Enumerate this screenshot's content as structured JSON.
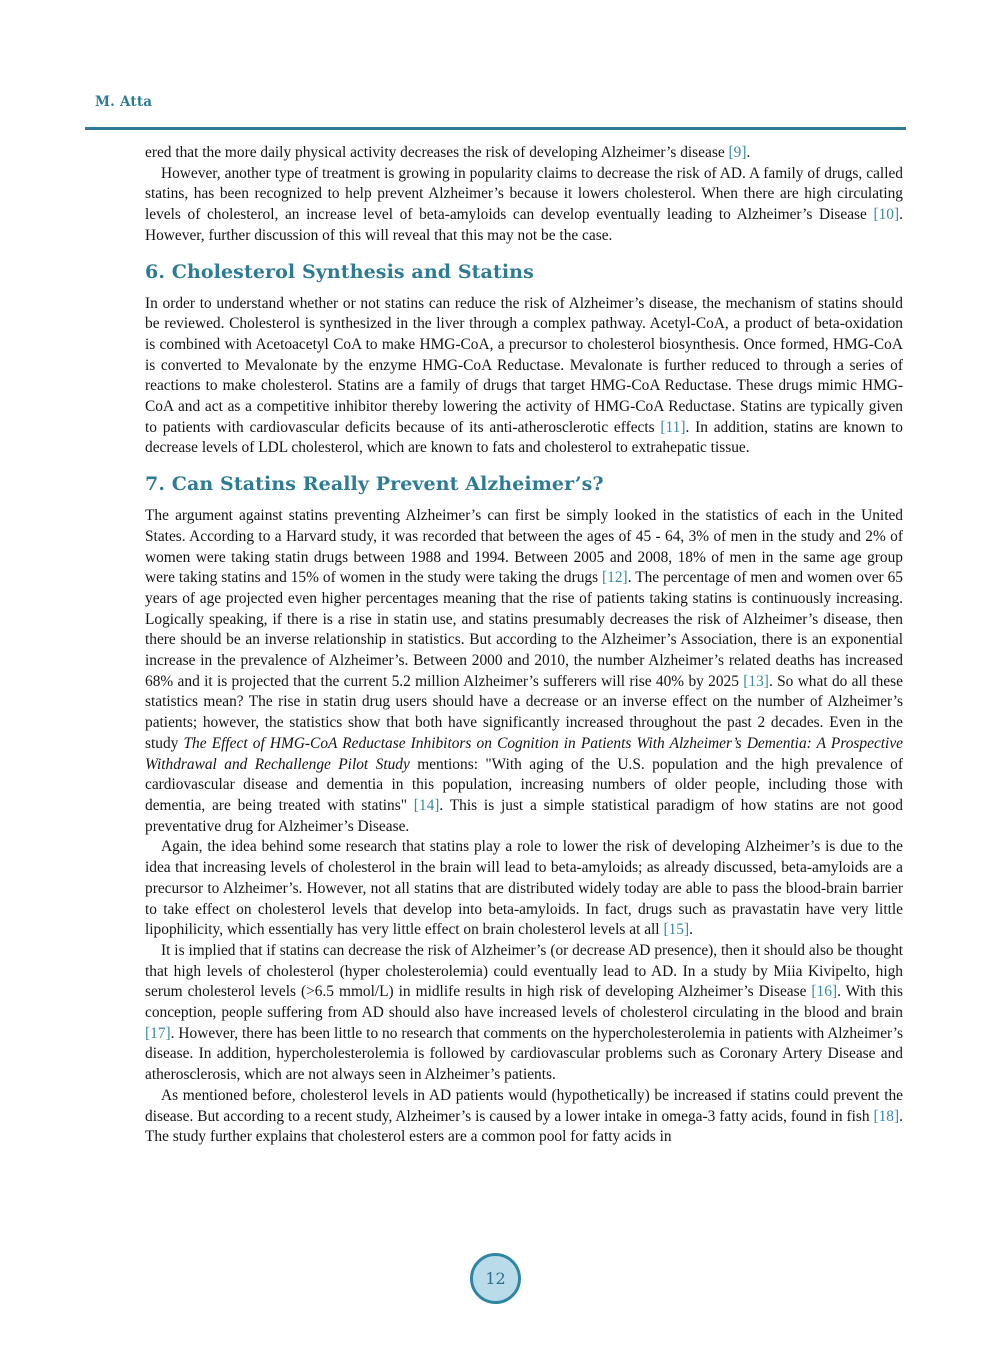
{
  "header": {
    "author": "M. Atta"
  },
  "footer": {
    "page_number": "12"
  },
  "colors": {
    "accent": "#2d7b94",
    "link": "#3a8aa3",
    "badge_fill": "#badcea",
    "badge_border": "#2e86a2",
    "badge_text": "#2e6e8a"
  },
  "article": {
    "h6": "6. Cholesterol Synthesis and Statins",
    "h7": "7. Can Statins Really Prevent Alzheimer’s?",
    "p1": [
      {
        "t": "ered that the more daily physical activity decreases the risk of developing Alzheimer’s disease "
      },
      {
        "t": "[9]",
        "s": "cite"
      },
      {
        "t": "."
      }
    ],
    "p2": [
      {
        "t": "However, another type of treatment is growing in popularity claims to decrease the risk of AD. A family of drugs, called statins, has been recognized to help prevent Alzheimer’s because it lowers cholesterol. When there are high circulating levels of cholesterol, an increase level of beta-amyloids can develop eventually leading to Alzheimer’s Disease "
      },
      {
        "t": "[10]",
        "s": "cite"
      },
      {
        "t": ". However, further discussion of this will reveal that this may not be the case."
      }
    ],
    "p3": [
      {
        "t": "In order to understand whether or not statins can reduce the risk of Alzheimer’s disease, the mechanism of statins should be reviewed. Cholesterol is synthesized in the liver through a complex pathway. Acetyl-CoA, a product of beta-oxidation is combined with Acetoacetyl CoA to make HMG-CoA, a precursor to cholesterol biosynthesis. Once formed, HMG-CoA is converted to Mevalonate by the enzyme HMG-CoA Reductase. Mevalonate is further reduced to through a series of reactions to make cholesterol. Statins are a family of drugs that target HMG-CoA Reductase. These drugs mimic HMG-CoA and act as a competitive inhibitor thereby lowering the activity of HMG-CoA Reductase. Statins are typically given to patients with cardiovascular deficits because of its anti-atherosclerotic effects "
      },
      {
        "t": "[11]",
        "s": "cite"
      },
      {
        "t": ". In addition, statins are known to decrease levels of LDL cholesterol, which are known to fats and cholesterol to extrahepatic tissue."
      }
    ],
    "p4": [
      {
        "t": "The argument against statins preventing Alzheimer’s can first be simply looked in the statistics of each in the United States. According to a Harvard study, it was recorded that between the ages of 45 - 64, 3% of men in the study and 2% of women were taking statin drugs between 1988 and 1994. Between 2005 and 2008, 18% of men in the same age group were taking statins and 15% of women in the study were taking the drugs "
      },
      {
        "t": "[12]",
        "s": "cite"
      },
      {
        "t": ". The percentage of men and women over 65 years of age projected even higher percentages meaning that the rise of patients taking statins is continuously increasing. Logically speaking, if there is a rise in statin use, and statins presumably decreases the risk of Alzheimer’s disease, then there should be an inverse relationship in statistics. But according to the Alzheimer’s Association, there is an exponential increase in the prevalence of Alzheimer’s. Between 2000 and 2010, the number Alzheimer’s related deaths has increased 68% and it is projected that the current 5.2 million Alzheimer’s sufferers will rise 40% by 2025 "
      },
      {
        "t": "[13]",
        "s": "cite"
      },
      {
        "t": ". So what do all these statistics mean? The rise in statin drug users should have a decrease or an inverse effect on the number of Alzheimer’s patients; however, the statistics show that both have significantly increased throughout the past 2 decades. Even in the study "
      },
      {
        "t": "The Effect of HMG-CoA Reductase Inhibitors on Cognition in Patients With Alzheimer’s Dementia: A Prospective Withdrawal and Rechallenge Pilot Study",
        "s": "italic"
      },
      {
        "t": " mentions: \"With aging of the U.S. population and the high prevalence of cardiovascular disease and dementia in this population, increasing numbers of older people, including those with dementia, are being treated with statins\" "
      },
      {
        "t": "[14]",
        "s": "cite"
      },
      {
        "t": ". This is just a simple statistical paradigm of how statins are not good preventative drug for Alzheimer’s Disease."
      }
    ],
    "p5": [
      {
        "t": "Again, the idea behind some research that statins play a role to lower the risk of developing Alzheimer’s is due to the idea that increasing levels of cholesterol in the brain will lead to beta-amyloids; as already discussed, beta-amyloids are a precursor to Alzheimer’s. However, not all statins that are distributed widely today are able to pass the blood-brain barrier to take effect on cholesterol levels that develop into beta-amyloids. In fact, drugs such as pravastatin have very little lipophilicity, which essentially has very little effect on brain cholesterol levels at all "
      },
      {
        "t": "[15]",
        "s": "cite"
      },
      {
        "t": "."
      }
    ],
    "p6": [
      {
        "t": "It is implied that if statins can decrease the risk of Alzheimer’s (or decrease AD presence), then it should also be thought that high levels of cholesterol (hyper cholesterolemia) could eventually lead to AD. In a study by Miia Kivipelto, high serum cholesterol levels (>6.5 mmol/L) in midlife results in high risk of developing Alzheimer’s Disease "
      },
      {
        "t": "[16]",
        "s": "cite"
      },
      {
        "t": ". With this conception, people suffering from AD should also have increased levels of cholesterol circulating in the blood and brain "
      },
      {
        "t": "[17]",
        "s": "cite"
      },
      {
        "t": ". However, there has been little to no research that comments on the hypercholesterolemia in patients with Alzheimer’s disease. In addition, hypercholesterolemia is followed by cardiovascular problems such as Coronary Artery Disease and atherosclerosis, which are not always seen in Alzheimer’s patients."
      }
    ],
    "p7": [
      {
        "t": "As mentioned before, cholesterol levels in AD patients would (hypothetically) be increased if statins could prevent the disease. But according to a recent study, Alzheimer’s is caused by a lower intake in omega-3 fatty acids, found in fish "
      },
      {
        "t": "[18]",
        "s": "cite"
      },
      {
        "t": ". The study further explains that cholesterol esters are a common pool for fatty acids in"
      }
    ]
  }
}
